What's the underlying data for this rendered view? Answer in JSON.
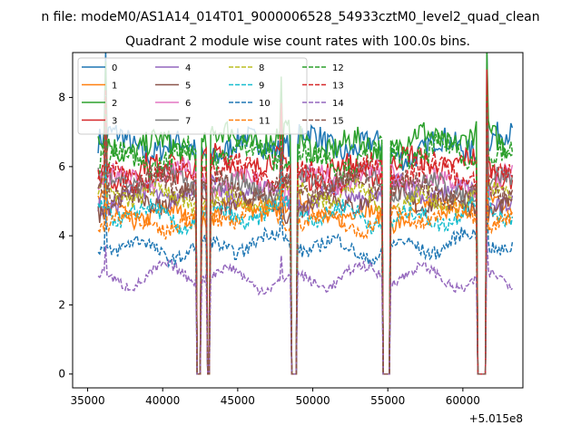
{
  "figure_title": "n file: modeM0/AS1A14_014T01_9000006528_54933cztM0_level2_quad_clean",
  "chart_data": {
    "type": "line",
    "title": "Quadrant 2 module wise count rates with 100.0s bins.",
    "xlabel": "",
    "ylabel": "",
    "x_offset_label": "+5.015e8",
    "xlim": [
      34000,
      64000
    ],
    "ylim": [
      -0.4,
      9.3
    ],
    "x_ticks": [
      35000,
      40000,
      45000,
      50000,
      55000,
      60000
    ],
    "x_tick_labels": [
      "35000",
      "40000",
      "45000",
      "50000",
      "55000",
      "60000"
    ],
    "y_ticks": [
      0,
      2,
      4,
      6,
      8
    ],
    "y_tick_labels": [
      "0",
      "2",
      "4",
      "6",
      "8"
    ],
    "time_range": [
      35700,
      63300
    ],
    "bin_seconds": 100,
    "data_segments": [
      [
        35700,
        42200
      ],
      [
        42600,
        42900
      ],
      [
        43200,
        48500
      ],
      [
        49000,
        54600
      ],
      [
        55200,
        60900
      ],
      [
        61600,
        63300
      ]
    ],
    "spikes": [
      {
        "x": 36200,
        "scale": 1.35
      },
      {
        "x": 47900,
        "scale": 1.2
      },
      {
        "x": 61600,
        "scale": 1.4
      },
      {
        "x": 42500,
        "scale": 0.0
      }
    ],
    "series": [
      {
        "name": "0",
        "color": "#1f77b4",
        "dash": "solid",
        "level": 6.6
      },
      {
        "name": "1",
        "color": "#ff7f0e",
        "dash": "solid",
        "level": 4.7
      },
      {
        "name": "2",
        "color": "#2ca02c",
        "dash": "solid",
        "level": 6.7
      },
      {
        "name": "3",
        "color": "#d62728",
        "dash": "solid",
        "level": 6.0
      },
      {
        "name": "4",
        "color": "#9467bd",
        "dash": "solid",
        "level": 5.2
      },
      {
        "name": "5",
        "color": "#8c564b",
        "dash": "solid",
        "level": 5.0
      },
      {
        "name": "6",
        "color": "#e377c2",
        "dash": "solid",
        "level": 5.6
      },
      {
        "name": "7",
        "color": "#7f7f7f",
        "dash": "solid",
        "level": 5.5
      },
      {
        "name": "8",
        "color": "#bcbd22",
        "dash": "dashed",
        "level": 5.1
      },
      {
        "name": "9",
        "color": "#17becf",
        "dash": "dashed",
        "level": 4.6
      },
      {
        "name": "10",
        "color": "#1f77b4",
        "dash": "dashed",
        "level": 3.7
      },
      {
        "name": "11",
        "color": "#ff7f0e",
        "dash": "dashed",
        "level": 4.5
      },
      {
        "name": "12",
        "color": "#2ca02c",
        "dash": "dashed",
        "level": 6.3
      },
      {
        "name": "13",
        "color": "#d62728",
        "dash": "dashed",
        "level": 5.8
      },
      {
        "name": "14",
        "color": "#9467bd",
        "dash": "dashed",
        "level": 2.8
      },
      {
        "name": "15",
        "color": "#8c564b",
        "dash": "dashed",
        "level": 5.4
      }
    ]
  }
}
